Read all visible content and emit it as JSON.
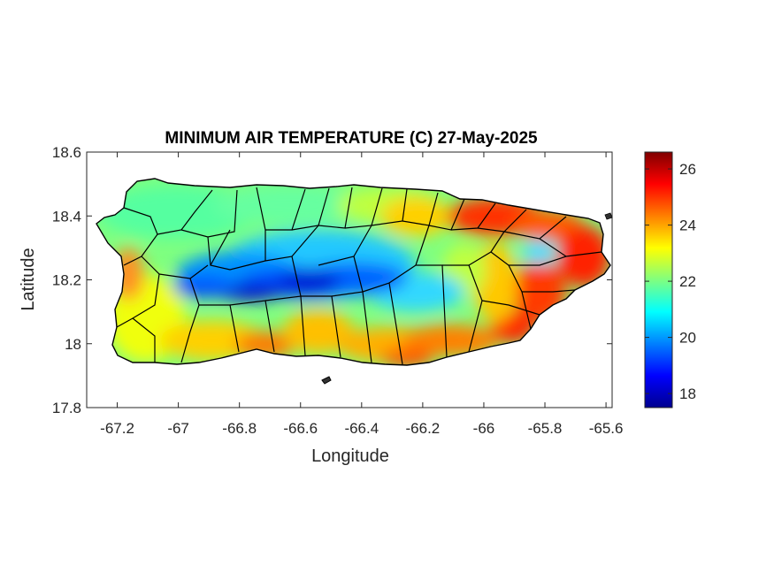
{
  "title": "MINIMUM AIR TEMPERATURE (C) 27-May-2025",
  "xlabel": "Longitude",
  "ylabel": "Latitude",
  "xticks": [
    -67.2,
    -67,
    -66.8,
    -66.6,
    -66.4,
    -66.2,
    -66,
    -65.8,
    -65.6
  ],
  "xtick_labels": [
    "-67.2",
    "-67",
    "-66.8",
    "-66.6",
    "-66.4",
    "-66.2",
    "-66",
    "-65.8",
    "-65.6"
  ],
  "yticks": [
    18.6,
    18.4,
    18.2,
    18
  ],
  "ytick_labels": [
    "18.6",
    "18.4",
    "18.2",
    "18"
  ],
  "y_bottom_label": "17.8",
  "xlim": [
    -67.3,
    -65.58
  ],
  "ylim": [
    17.8,
    18.6
  ],
  "colorbar": {
    "colormap": "jet",
    "range": [
      17.5,
      26.6
    ],
    "ticks": [
      18,
      20,
      22,
      24,
      26
    ],
    "tick_labels": [
      "18",
      "20",
      "22",
      "24",
      "26"
    ]
  },
  "colors": {
    "axes": "#262626",
    "boundary": "#000000"
  },
  "chart_data": {
    "type": "heatmap",
    "title": "MINIMUM AIR TEMPERATURE (C) 27-May-2025",
    "xlabel": "Longitude",
    "ylabel": "Latitude",
    "xlim": [
      -67.3,
      -65.58
    ],
    "ylim": [
      17.8,
      18.6
    ],
    "value_range": [
      17.5,
      26.6
    ],
    "unit": "C",
    "region": "Puerto Rico",
    "grid": false,
    "colorbar_position": "right",
    "approx_field_samples": [
      {
        "lon": -66.72,
        "lat": 18.17,
        "value": 18.5
      },
      {
        "lon": -66.55,
        "lat": 18.17,
        "value": 18.8
      },
      {
        "lon": -66.45,
        "lat": 18.2,
        "value": 19.5
      },
      {
        "lon": -66.85,
        "lat": 18.22,
        "value": 20.5
      },
      {
        "lon": -66.2,
        "lat": 18.16,
        "value": 21.5
      },
      {
        "lon": -66.9,
        "lat": 18.42,
        "value": 22.0
      },
      {
        "lon": -66.3,
        "lat": 18.4,
        "value": 23.0
      },
      {
        "lon": -67.15,
        "lat": 18.2,
        "value": 24.5
      },
      {
        "lon": -66.75,
        "lat": 18.0,
        "value": 24.0
      },
      {
        "lon": -65.95,
        "lat": 18.42,
        "value": 25.5
      },
      {
        "lon": -65.63,
        "lat": 18.3,
        "value": 26.2
      },
      {
        "lon": -65.78,
        "lat": 18.1,
        "value": 25.5
      },
      {
        "lon": -66.0,
        "lat": 17.98,
        "value": 24.5
      }
    ]
  }
}
